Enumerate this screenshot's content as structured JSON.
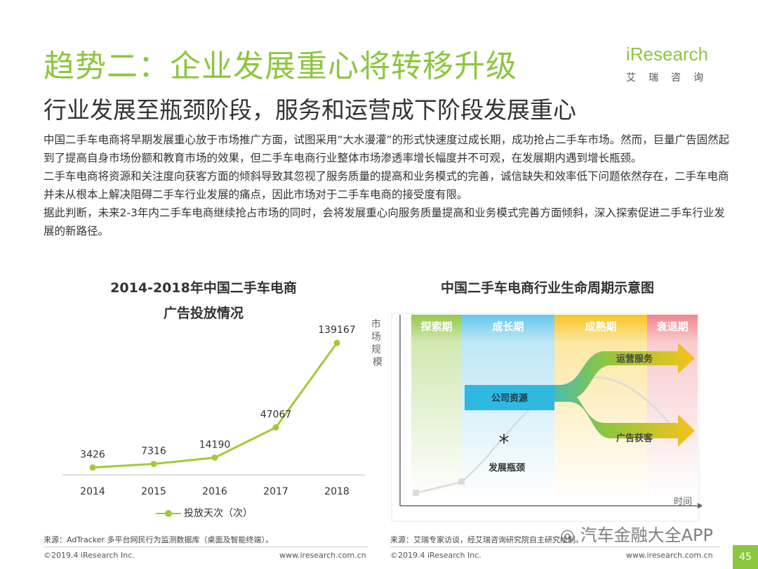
{
  "header": {
    "title": "趋势二：企业发展重心将转移升级",
    "subtitle": "行业发展至瓶颈阶段，服务和运营成下阶段发展重心"
  },
  "logo": {
    "name": "iResearch",
    "cn": "艾瑞咨询",
    "color": "#8dc63f"
  },
  "body": {
    "paragraphs": [
      "中国二手车电商将早期发展重心放于市场推广方面，试图采用“大水漫灌”的形式快速度过成长期，成功抢占二手车市场。然而，巨量广告固然起到了提高自身市场份额和教育市场的效果，但二手车电商行业整体市场渗透率增长幅度并不可观，在发展期内遇到增长瓶颈。",
      "二手车电商将资源和关注度向获客方面的倾斜导致其忽视了服务质量的提高和业务模式的完善，诚信缺失和效率低下问题依然存在，二手车电商并未从根本上解决阻碍二手车行业发展的痛点，因此市场对于二手车电商的接受度有限。",
      "据此判断，未来2-3年内二手车电商继续抢占市场的同时，会将发展重心向服务质量提高和业务模式完善方面倾斜，深入探索促进二手车行业发展的新路径。"
    ]
  },
  "left_chart": {
    "title_line1": "2014-2018年中国二手车电商",
    "title_line2": "广告投放情况",
    "legend_label": "投放天次（次）",
    "source": "来源：AdTracker 多平台网民行为监测数据库（桌面及智能终端）。",
    "line_color": "#a5c83b"
  },
  "chart_data": {
    "type": "line",
    "title": "2014-2018年中国二手车电商广告投放情况",
    "categories": [
      "2014",
      "2015",
      "2016",
      "2017",
      "2018"
    ],
    "series": [
      {
        "name": "投放天次（次）",
        "values": [
          3426,
          7316,
          14190,
          47067,
          139167
        ]
      }
    ],
    "ylim": [
      0,
      150000
    ],
    "grid": false,
    "legend": "bottom"
  },
  "right_diagram": {
    "title": "中国二手车电商行业生命周期示意图",
    "y_label": "市场规模",
    "x_label": "时间",
    "phases": [
      {
        "label": "探索期",
        "color": "#8dc63f"
      },
      {
        "label": "成长期",
        "color": "#5ec3ea"
      },
      {
        "label": "成熟期",
        "color": "#f7c21a"
      },
      {
        "label": "衰退期",
        "color": "#ef7f86"
      }
    ],
    "resource_label": "公司资源",
    "upper_arrow_label": "运营服务",
    "lower_arrow_label": "广告获客",
    "bottleneck_mark": "*",
    "bottleneck_label": "发展瓶颈",
    "source": "来源：艾瑞专家访谈，经艾瑞咨询研究院自主研究绘制。"
  },
  "footer": {
    "copyright_left": "©2019.4 iResearch Inc.",
    "url_left": "www.iresearch.com.cn",
    "copyright_right": "©2019.4 iResearch Inc.",
    "url_right": "www.iresearch.com.cn",
    "page_number": "45",
    "watermark": "汽车金融大全APP"
  }
}
